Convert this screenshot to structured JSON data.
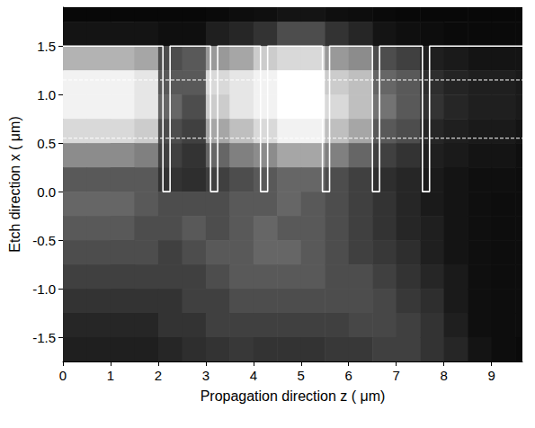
{
  "chart_data": {
    "type": "heatmap",
    "xlabel": "Propagation direction z ( μm)",
    "ylabel": "Etch direction x ( μm)",
    "xlim": [
      0,
      9.65
    ],
    "xticks": [
      0,
      1,
      2,
      3,
      4,
      5,
      6,
      7,
      8,
      9
    ],
    "ylim": [
      -1.75,
      1.9
    ],
    "yticks": [
      {
        "value": -1.5,
        "label": "-1.5"
      },
      {
        "value": -1,
        "label": "-1.0"
      },
      {
        "value": -0.5,
        "label": "-0.5"
      },
      {
        "value": 0,
        "label": "0.0"
      },
      {
        "value": 0.5,
        "label": "0.5"
      },
      {
        "value": 1,
        "label": "1.0"
      },
      {
        "value": 1.5,
        "label": "1.5"
      }
    ],
    "grid": false,
    "zlim": [
      0,
      1
    ],
    "cell_z": [
      0.25,
      0.75,
      1.25,
      1.75,
      2.25,
      2.75,
      3.25,
      3.75,
      4.25,
      4.75,
      5.25,
      5.75,
      6.25,
      6.75,
      7.25,
      7.75,
      8.25,
      8.75,
      9.25,
      9.75
    ],
    "cell_x": [
      1.875,
      1.625,
      1.375,
      1.125,
      0.875,
      0.625,
      0.375,
      0.125,
      -0.125,
      -0.375,
      -0.625,
      -0.875,
      -1.125,
      -1.375,
      -1.625
    ],
    "intensity": [
      [
        0.03,
        0.03,
        0.03,
        0.03,
        0.03,
        0.03,
        0.04,
        0.05,
        0.06,
        0.08,
        0.08,
        0.06,
        0.05,
        0.04,
        0.03,
        0.03,
        0.03,
        0.03,
        0.03,
        0.03
      ],
      [
        0.08,
        0.08,
        0.08,
        0.08,
        0.06,
        0.06,
        0.12,
        0.15,
        0.2,
        0.3,
        0.3,
        0.2,
        0.15,
        0.08,
        0.06,
        0.05,
        0.04,
        0.04,
        0.04,
        0.04
      ],
      [
        0.7,
        0.7,
        0.7,
        0.65,
        0.3,
        0.35,
        0.6,
        0.65,
        0.8,
        0.85,
        0.85,
        0.6,
        0.55,
        0.3,
        0.25,
        0.12,
        0.1,
        0.08,
        0.08,
        0.08
      ],
      [
        0.95,
        0.95,
        0.95,
        0.9,
        0.35,
        0.35,
        0.85,
        0.9,
        0.95,
        1.0,
        1.0,
        0.8,
        0.75,
        0.4,
        0.35,
        0.18,
        0.14,
        0.12,
        0.12,
        0.1
      ],
      [
        0.95,
        0.95,
        0.95,
        0.9,
        0.4,
        0.3,
        0.8,
        0.9,
        0.95,
        1.0,
        1.0,
        0.85,
        0.75,
        0.45,
        0.35,
        0.2,
        0.15,
        0.12,
        0.12,
        0.1
      ],
      [
        0.85,
        0.85,
        0.85,
        0.8,
        0.3,
        0.25,
        0.65,
        0.75,
        0.85,
        0.95,
        0.95,
        0.75,
        0.65,
        0.35,
        0.3,
        0.15,
        0.12,
        0.1,
        0.1,
        0.08
      ],
      [
        0.55,
        0.55,
        0.55,
        0.5,
        0.25,
        0.2,
        0.4,
        0.5,
        0.55,
        0.65,
        0.65,
        0.5,
        0.4,
        0.25,
        0.2,
        0.12,
        0.1,
        0.08,
        0.08,
        0.06
      ],
      [
        0.35,
        0.35,
        0.35,
        0.35,
        0.2,
        0.18,
        0.25,
        0.3,
        0.35,
        0.4,
        0.4,
        0.3,
        0.25,
        0.18,
        0.15,
        0.1,
        0.08,
        0.06,
        0.06,
        0.05
      ],
      [
        0.4,
        0.4,
        0.4,
        0.35,
        0.3,
        0.3,
        0.3,
        0.35,
        0.35,
        0.4,
        0.35,
        0.3,
        0.25,
        0.2,
        0.15,
        0.1,
        0.08,
        0.06,
        0.05,
        0.05
      ],
      [
        0.35,
        0.35,
        0.35,
        0.3,
        0.3,
        0.35,
        0.3,
        0.35,
        0.4,
        0.35,
        0.35,
        0.3,
        0.25,
        0.2,
        0.15,
        0.12,
        0.08,
        0.06,
        0.05,
        0.05
      ],
      [
        0.3,
        0.3,
        0.3,
        0.3,
        0.25,
        0.3,
        0.35,
        0.35,
        0.4,
        0.4,
        0.35,
        0.3,
        0.25,
        0.22,
        0.18,
        0.12,
        0.08,
        0.06,
        0.05,
        0.05
      ],
      [
        0.25,
        0.25,
        0.25,
        0.25,
        0.25,
        0.25,
        0.3,
        0.35,
        0.35,
        0.35,
        0.35,
        0.3,
        0.3,
        0.25,
        0.2,
        0.15,
        0.1,
        0.06,
        0.05,
        0.05
      ],
      [
        0.2,
        0.2,
        0.2,
        0.2,
        0.2,
        0.25,
        0.25,
        0.3,
        0.3,
        0.3,
        0.3,
        0.3,
        0.3,
        0.28,
        0.22,
        0.18,
        0.1,
        0.06,
        0.05,
        0.05
      ],
      [
        0.15,
        0.15,
        0.15,
        0.15,
        0.2,
        0.2,
        0.25,
        0.25,
        0.25,
        0.25,
        0.25,
        0.25,
        0.28,
        0.28,
        0.25,
        0.2,
        0.12,
        0.06,
        0.05,
        0.05
      ],
      [
        0.12,
        0.12,
        0.12,
        0.12,
        0.15,
        0.18,
        0.2,
        0.22,
        0.2,
        0.2,
        0.2,
        0.22,
        0.22,
        0.25,
        0.25,
        0.2,
        0.15,
        0.08,
        0.05,
        0.04
      ]
    ],
    "outline": {
      "color": "#ffffff",
      "line_style": "solid",
      "points": [
        [
          0,
          1.5
        ],
        [
          2.1,
          1.5
        ],
        [
          2.1,
          0
        ],
        [
          2.25,
          0
        ],
        [
          2.25,
          1.5
        ],
        [
          3.1,
          1.5
        ],
        [
          3.1,
          0
        ],
        [
          3.25,
          0
        ],
        [
          3.25,
          1.5
        ],
        [
          4.15,
          1.5
        ],
        [
          4.15,
          0
        ],
        [
          4.3,
          0
        ],
        [
          4.3,
          1.5
        ],
        [
          5.45,
          1.5
        ],
        [
          5.45,
          0
        ],
        [
          5.6,
          0
        ],
        [
          5.6,
          1.5
        ],
        [
          6.5,
          1.5
        ],
        [
          6.5,
          0
        ],
        [
          6.65,
          0
        ],
        [
          6.65,
          1.5
        ],
        [
          7.55,
          1.5
        ],
        [
          7.55,
          0
        ],
        [
          7.7,
          0
        ],
        [
          7.7,
          1.5
        ],
        [
          9.65,
          1.5
        ]
      ]
    },
    "dashed_lines": {
      "color": "#ffffff",
      "line_style": "dashed",
      "x": [
        1.15,
        0.55
      ]
    }
  }
}
